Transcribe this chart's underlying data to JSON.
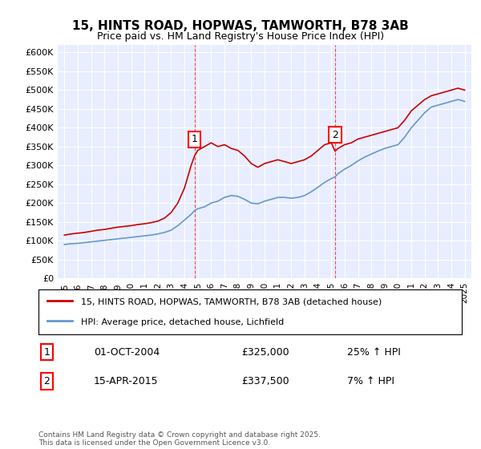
{
  "title": "15, HINTS ROAD, HOPWAS, TAMWORTH, B78 3AB",
  "subtitle": "Price paid vs. HM Land Registry's House Price Index (HPI)",
  "red_label": "15, HINTS ROAD, HOPWAS, TAMWORTH, B78 3AB (detached house)",
  "blue_label": "HPI: Average price, detached house, Lichfield",
  "annotation1_label": "1",
  "annotation1_date": "01-OCT-2004",
  "annotation1_price": "£325,000",
  "annotation1_hpi": "25% ↑ HPI",
  "annotation2_label": "2",
  "annotation2_date": "15-APR-2015",
  "annotation2_price": "£337,500",
  "annotation2_hpi": "7% ↑ HPI",
  "footer": "Contains HM Land Registry data © Crown copyright and database right 2025.\nThis data is licensed under the Open Government Licence v3.0.",
  "ylim": [
    0,
    620000
  ],
  "yticks": [
    0,
    50000,
    100000,
    150000,
    200000,
    250000,
    300000,
    350000,
    400000,
    450000,
    500000,
    550000,
    600000
  ],
  "background_color": "#f0f4ff",
  "plot_bg": "#e8eeff",
  "red_color": "#cc0000",
  "blue_color": "#6699cc",
  "vline1_x": 2004.75,
  "vline2_x": 2015.29,
  "red_x": [
    1995.0,
    1995.5,
    1996.0,
    1996.5,
    1997.0,
    1997.5,
    1998.0,
    1998.5,
    1999.0,
    1999.5,
    2000.0,
    2000.5,
    2001.0,
    2001.5,
    2002.0,
    2002.5,
    2003.0,
    2003.5,
    2004.0,
    2004.5,
    2004.75,
    2005.0,
    2005.5,
    2006.0,
    2006.5,
    2007.0,
    2007.5,
    2008.0,
    2008.5,
    2009.0,
    2009.5,
    2010.0,
    2010.5,
    2011.0,
    2011.5,
    2012.0,
    2012.5,
    2013.0,
    2013.5,
    2014.0,
    2014.5,
    2015.0,
    2015.29,
    2015.5,
    2016.0,
    2016.5,
    2017.0,
    2017.5,
    2018.0,
    2018.5,
    2019.0,
    2019.5,
    2020.0,
    2020.5,
    2021.0,
    2021.5,
    2022.0,
    2022.5,
    2023.0,
    2023.5,
    2024.0,
    2024.5,
    2025.0
  ],
  "red_y": [
    115000,
    118000,
    120000,
    122000,
    125000,
    128000,
    130000,
    133000,
    136000,
    138000,
    140000,
    143000,
    145000,
    148000,
    152000,
    160000,
    175000,
    200000,
    240000,
    300000,
    325000,
    340000,
    350000,
    360000,
    350000,
    355000,
    345000,
    340000,
    325000,
    305000,
    295000,
    305000,
    310000,
    315000,
    310000,
    305000,
    310000,
    315000,
    325000,
    340000,
    355000,
    360000,
    337500,
    345000,
    355000,
    360000,
    370000,
    375000,
    380000,
    385000,
    390000,
    395000,
    400000,
    420000,
    445000,
    460000,
    475000,
    485000,
    490000,
    495000,
    500000,
    505000,
    500000
  ],
  "blue_x": [
    1995.0,
    1995.5,
    1996.0,
    1996.5,
    1997.0,
    1997.5,
    1998.0,
    1998.5,
    1999.0,
    1999.5,
    2000.0,
    2000.5,
    2001.0,
    2001.5,
    2002.0,
    2002.5,
    2003.0,
    2003.5,
    2004.0,
    2004.5,
    2004.75,
    2005.0,
    2005.5,
    2006.0,
    2006.5,
    2007.0,
    2007.5,
    2008.0,
    2008.5,
    2009.0,
    2009.5,
    2010.0,
    2010.5,
    2011.0,
    2011.5,
    2012.0,
    2012.5,
    2013.0,
    2013.5,
    2014.0,
    2014.5,
    2015.0,
    2015.29,
    2015.5,
    2016.0,
    2016.5,
    2017.0,
    2017.5,
    2018.0,
    2018.5,
    2019.0,
    2019.5,
    2020.0,
    2020.5,
    2021.0,
    2021.5,
    2022.0,
    2022.5,
    2023.0,
    2023.5,
    2024.0,
    2024.5,
    2025.0
  ],
  "blue_y": [
    90000,
    92000,
    93000,
    95000,
    97000,
    99000,
    101000,
    103000,
    105000,
    107000,
    109000,
    111000,
    113000,
    115000,
    118000,
    122000,
    128000,
    140000,
    155000,
    170000,
    180000,
    185000,
    190000,
    200000,
    205000,
    215000,
    220000,
    218000,
    210000,
    200000,
    198000,
    205000,
    210000,
    215000,
    215000,
    213000,
    215000,
    220000,
    230000,
    242000,
    255000,
    265000,
    270000,
    278000,
    290000,
    300000,
    312000,
    322000,
    330000,
    338000,
    345000,
    350000,
    355000,
    375000,
    400000,
    420000,
    440000,
    455000,
    460000,
    465000,
    470000,
    475000,
    470000
  ],
  "xticks": [
    1995,
    1996,
    1997,
    1998,
    1999,
    2000,
    2001,
    2002,
    2003,
    2004,
    2005,
    2006,
    2007,
    2008,
    2009,
    2010,
    2011,
    2012,
    2013,
    2014,
    2015,
    2016,
    2017,
    2018,
    2019,
    2020,
    2021,
    2022,
    2023,
    2024,
    2025
  ]
}
